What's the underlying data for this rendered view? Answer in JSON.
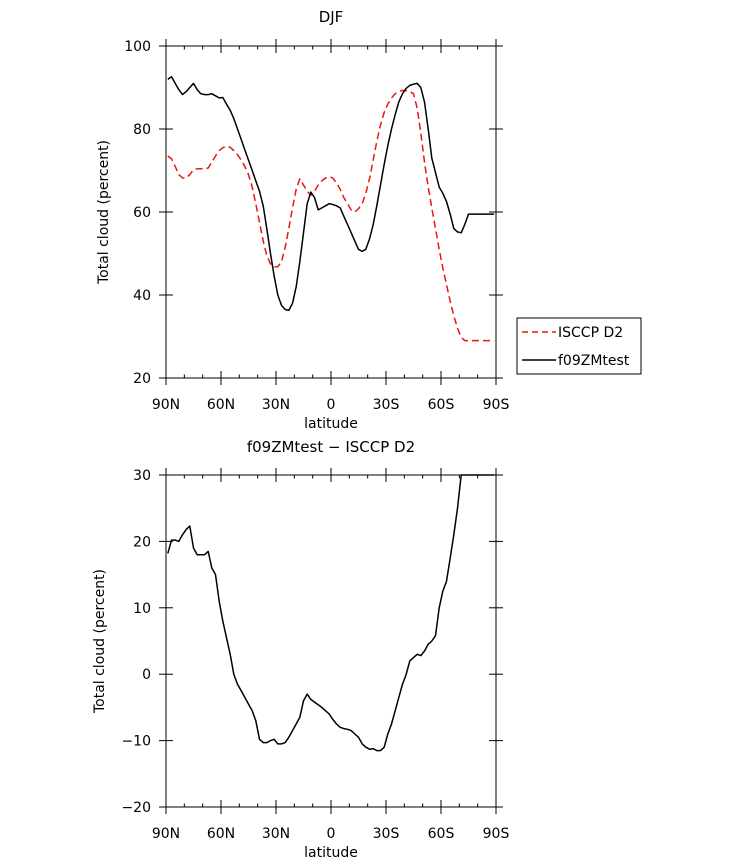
{
  "chart_data": [
    {
      "type": "line",
      "title": "DJF",
      "xlabel": "latitude",
      "ylabel": "Total cloud (percent)",
      "xlim": [
        90,
        -90
      ],
      "ylim": [
        20,
        100
      ],
      "x_ticks": [
        90,
        60,
        30,
        0,
        -30,
        -60,
        -90
      ],
      "x_tick_labels": [
        "90N",
        "60N",
        "30N",
        "0",
        "30S",
        "60S",
        "90S"
      ],
      "y_ticks": [
        20,
        40,
        60,
        80,
        100
      ],
      "y_tick_labels": [
        "20",
        "40",
        "60",
        "80",
        "100"
      ],
      "legend": "right",
      "series": [
        {
          "name": "ISCCP D2",
          "color": "#e8170f",
          "dash": "dashed",
          "x": [
            89,
            87,
            85,
            83,
            81,
            79,
            77,
            75,
            73,
            71,
            69,
            67,
            65,
            63,
            61,
            59,
            57,
            55,
            53,
            51,
            49,
            47,
            45,
            43,
            41,
            39,
            37,
            35,
            33,
            31,
            29,
            27,
            25,
            23,
            21,
            19,
            17,
            15,
            13,
            11,
            9,
            7,
            5,
            3,
            1,
            -1,
            -3,
            -5,
            -7,
            -9,
            -11,
            -13,
            -15,
            -17,
            -19,
            -21,
            -23,
            -25,
            -27,
            -29,
            -31,
            -33,
            -35,
            -37,
            -39,
            -41,
            -43,
            -45,
            -47,
            -49,
            -51,
            -53,
            -55,
            -57,
            -59,
            -61,
            -63,
            -65,
            -67,
            -69,
            -71,
            -73,
            -75,
            -77,
            -79,
            -81,
            -83,
            -85,
            -87,
            -89
          ],
          "values": [
            73.5,
            72.8,
            71.0,
            69.0,
            68.2,
            68.2,
            69.0,
            70.2,
            70.4,
            70.4,
            70.4,
            70.6,
            72.0,
            73.5,
            74.8,
            75.5,
            75.8,
            75.6,
            74.8,
            73.8,
            72.5,
            71.0,
            69.0,
            66.0,
            62.0,
            57.5,
            53.0,
            49.5,
            47.5,
            46.8,
            46.8,
            48.0,
            51.5,
            56.0,
            61.0,
            65.5,
            68.0,
            66.5,
            65.0,
            64.0,
            65.0,
            66.5,
            67.5,
            68.2,
            68.5,
            68.2,
            67.0,
            65.5,
            63.5,
            62.0,
            60.5,
            60.0,
            60.8,
            62.0,
            64.5,
            68.0,
            72.5,
            77.0,
            81.0,
            84.0,
            86.0,
            87.5,
            88.5,
            89.0,
            89.3,
            89.2,
            89.0,
            88.5,
            85.0,
            79.0,
            72.0,
            66.0,
            61.0,
            56.0,
            51.0,
            46.5,
            42.5,
            38.5,
            35.0,
            32.0,
            29.8,
            29.0,
            29.0,
            29.0,
            29.0,
            29.0,
            29.0,
            29.0,
            29.0,
            29.0
          ]
        },
        {
          "name": "f09ZMtest",
          "color": "#000000",
          "dash": "solid",
          "x": [
            89,
            87,
            85,
            83,
            81,
            79,
            77,
            75,
            73,
            71,
            69,
            67,
            65,
            63,
            61,
            59,
            57,
            55,
            53,
            51,
            49,
            47,
            45,
            43,
            41,
            39,
            37,
            35,
            33,
            31,
            29,
            27,
            25,
            23,
            21,
            19,
            17,
            15,
            13,
            11,
            9,
            7,
            5,
            3,
            1,
            -1,
            -3,
            -5,
            -7,
            -9,
            -11,
            -13,
            -15,
            -17,
            -19,
            -21,
            -23,
            -25,
            -27,
            -29,
            -31,
            -33,
            -35,
            -37,
            -39,
            -41,
            -43,
            -45,
            -47,
            -49,
            -51,
            -53,
            -55,
            -57,
            -59,
            -61,
            -63,
            -65,
            -67,
            -69,
            -71,
            -73,
            -75,
            -77,
            -79,
            -81,
            -83,
            -85,
            -87,
            -89
          ],
          "values": [
            92.0,
            92.6,
            91.0,
            89.5,
            88.3,
            89.0,
            90.0,
            91.0,
            89.5,
            88.5,
            88.3,
            88.3,
            88.5,
            88.0,
            87.5,
            87.6,
            86.0,
            84.5,
            82.5,
            80.0,
            77.5,
            75.0,
            72.5,
            70.0,
            67.5,
            65.0,
            61.5,
            56.0,
            50.0,
            44.5,
            40.0,
            37.5,
            36.5,
            36.3,
            38.0,
            42.0,
            48.0,
            55.0,
            62.0,
            64.8,
            63.5,
            60.5,
            61.0,
            61.5,
            62.0,
            61.8,
            61.5,
            61.0,
            59.0,
            57.0,
            55.0,
            53.0,
            51.0,
            50.5,
            51.0,
            53.5,
            57.0,
            61.5,
            66.5,
            71.5,
            76.0,
            80.0,
            83.5,
            86.5,
            88.5,
            89.8,
            90.5,
            90.8,
            91.0,
            90.0,
            86.5,
            80.0,
            73.0,
            69.5,
            66.0,
            64.5,
            62.5,
            59.5,
            56.0,
            55.2,
            55.0,
            57.0,
            59.5,
            59.5,
            59.5,
            59.5,
            59.5,
            59.5,
            59.5,
            59.5
          ]
        }
      ]
    },
    {
      "type": "line",
      "title": "f09ZMtest − ISCCP D2",
      "xlabel": "latitude",
      "ylabel": "Total cloud (percent)",
      "xlim": [
        90,
        -90
      ],
      "ylim": [
        -20,
        30
      ],
      "x_ticks": [
        90,
        60,
        30,
        0,
        -30,
        -60,
        -90
      ],
      "x_tick_labels": [
        "90N",
        "60N",
        "30N",
        "0",
        "30S",
        "60S",
        "90S"
      ],
      "y_ticks": [
        -20,
        -10,
        0,
        10,
        20,
        30
      ],
      "y_tick_labels": [
        "−20",
        "−10",
        "0",
        "10",
        "20",
        "30"
      ],
      "series": [
        {
          "name": "",
          "color": "#000000",
          "dash": "solid",
          "x": [
            89,
            87,
            85,
            83,
            81,
            79,
            77,
            75,
            73,
            71,
            69,
            67,
            65,
            63,
            61,
            59,
            57,
            55,
            53,
            51,
            49,
            47,
            45,
            43,
            41,
            39,
            37,
            35,
            33,
            31,
            29,
            27,
            25,
            23,
            21,
            19,
            17,
            15,
            13,
            11,
            9,
            7,
            5,
            3,
            1,
            -1,
            -3,
            -5,
            -7,
            -9,
            -11,
            -13,
            -15,
            -17,
            -19,
            -21,
            -23,
            -25,
            -27,
            -29,
            -31,
            -33,
            -35,
            -37,
            -39,
            -41,
            -43,
            -45,
            -47,
            -49,
            -51,
            -53,
            -55,
            -57,
            -59,
            -61,
            -63,
            -65,
            -67,
            -69,
            -71,
            -73,
            -75,
            -77,
            -79,
            -81,
            -83,
            -85,
            -87,
            -89
          ],
          "values": [
            18.2,
            20.2,
            20.2,
            20.0,
            21.0,
            21.8,
            22.3,
            19.0,
            18.0,
            18.0,
            18.0,
            18.5,
            16.0,
            15.0,
            11.0,
            8.0,
            5.5,
            3.0,
            0.0,
            -1.5,
            -2.5,
            -3.5,
            -4.5,
            -5.5,
            -7.0,
            -9.8,
            -10.3,
            -10.3,
            -10.0,
            -9.8,
            -10.5,
            -10.5,
            -10.3,
            -9.5,
            -8.5,
            -7.5,
            -6.5,
            -4.0,
            -3.0,
            -3.8,
            -4.2,
            -4.6,
            -5.0,
            -5.5,
            -6.0,
            -6.8,
            -7.5,
            -8.0,
            -8.2,
            -8.3,
            -8.5,
            -9.0,
            -9.5,
            -10.5,
            -11.0,
            -11.3,
            -11.2,
            -11.5,
            -11.5,
            -11.0,
            -9.0,
            -7.5,
            -5.5,
            -3.5,
            -1.5,
            0.0,
            2.0,
            2.5,
            3.0,
            2.8,
            3.5,
            4.5,
            5.0,
            5.8,
            10.0,
            12.5,
            14.0,
            17.5,
            21.0,
            25.0,
            30.0,
            30.0,
            30.0,
            30.0,
            30.0,
            30.0,
            30.0,
            30.0,
            30.0,
            30.0
          ]
        }
      ]
    }
  ]
}
